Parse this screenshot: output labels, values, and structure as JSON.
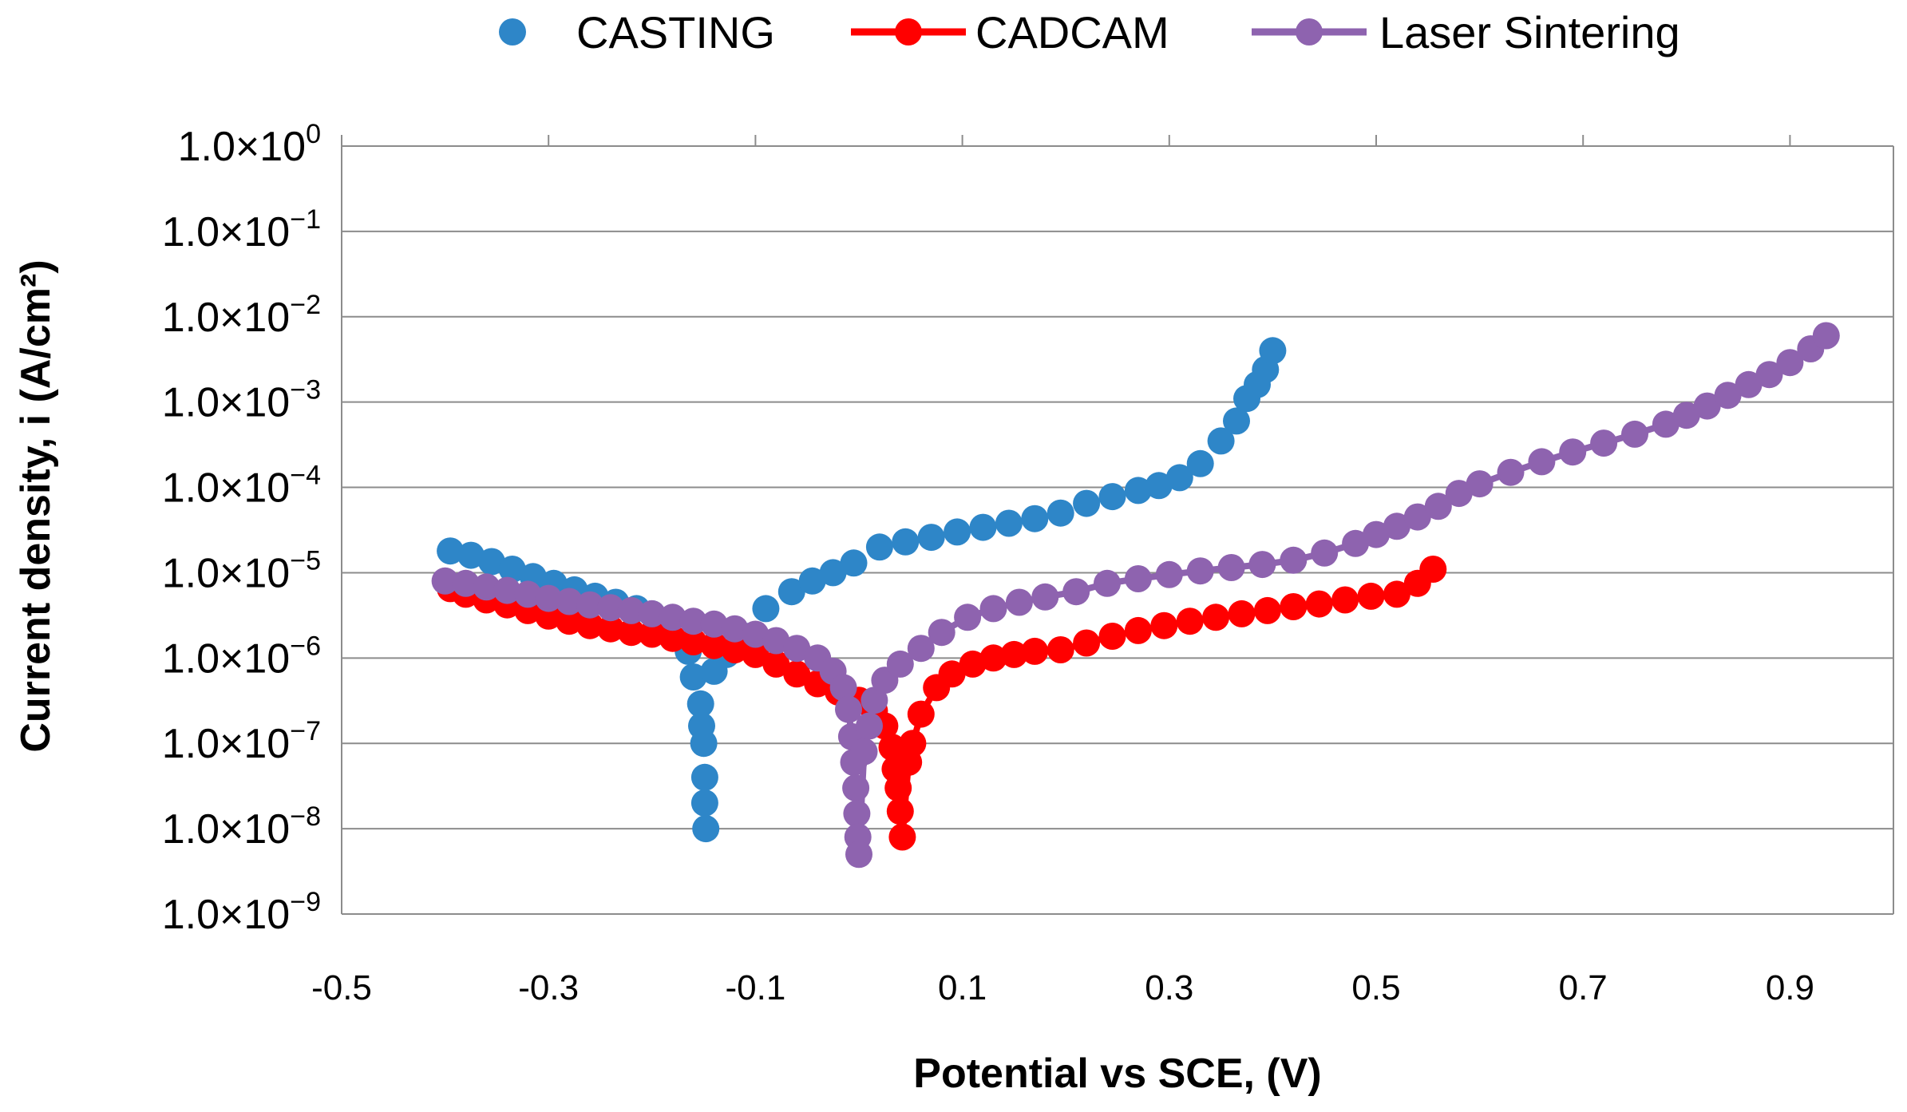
{
  "chart_data": {
    "type": "scatter",
    "xlabel": "Potential vs SCE, (V)",
    "ylabel": "Current density, i (A/cm²)",
    "xlim": [
      -0.5,
      1.0
    ],
    "ylim": [
      1e-09,
      1
    ],
    "yscale": "log",
    "grid": "horizontal",
    "legend_position": "top",
    "x_ticks": [
      "-0.5",
      "-0.3",
      "-0.1",
      "0.1",
      "0.3",
      "0.5",
      "0.7",
      "0.9"
    ],
    "x_tick_values": [
      -0.5,
      -0.3,
      -0.1,
      0.1,
      0.3,
      0.5,
      0.7,
      0.9
    ],
    "y_ticks": [
      {
        "mant": "1.0×10",
        "exp": "0",
        "value": 1
      },
      {
        "mant": "1.0×10",
        "exp": "−1",
        "value": 0.1
      },
      {
        "mant": "1.0×10",
        "exp": "−2",
        "value": 0.01
      },
      {
        "mant": "1.0×10",
        "exp": "−3",
        "value": 0.001
      },
      {
        "mant": "1.0×10",
        "exp": "−4",
        "value": 0.0001
      },
      {
        "mant": "1.0×10",
        "exp": "−5",
        "value": 1e-05
      },
      {
        "mant": "1.0×10",
        "exp": "−6",
        "value": 1e-06
      },
      {
        "mant": "1.0×10",
        "exp": "−7",
        "value": 1e-07
      },
      {
        "mant": "1.0×10",
        "exp": "−8",
        "value": 1e-08
      },
      {
        "mant": "1.0×10",
        "exp": "−9",
        "value": 1e-09
      }
    ],
    "series": [
      {
        "name": "CASTING",
        "color": "#2E86C8",
        "marker": "circle",
        "line": false,
        "points": [
          [
            -0.395,
            1.8e-05
          ],
          [
            -0.375,
            1.6e-05
          ],
          [
            -0.355,
            1.35e-05
          ],
          [
            -0.335,
            1.1e-05
          ],
          [
            -0.315,
            9e-06
          ],
          [
            -0.295,
            7.5e-06
          ],
          [
            -0.275,
            6.3e-06
          ],
          [
            -0.255,
            5.3e-06
          ],
          [
            -0.235,
            4.5e-06
          ],
          [
            -0.215,
            3.8e-06
          ],
          [
            -0.2,
            3.3e-06
          ],
          [
            -0.185,
            2.4e-06
          ],
          [
            -0.165,
            1.2e-06
          ],
          [
            -0.16,
            6e-07
          ],
          [
            -0.153,
            2.9e-07
          ],
          [
            -0.152,
            1.6e-07
          ],
          [
            -0.15,
            1e-07
          ],
          [
            -0.149,
            4e-08
          ],
          [
            -0.149,
            2e-08
          ],
          [
            -0.148,
            1e-08
          ],
          [
            -0.14,
            7e-07
          ],
          [
            -0.128,
            1.1e-06
          ],
          [
            -0.11,
            1.8e-06
          ],
          [
            -0.09,
            3.8e-06
          ],
          [
            -0.065,
            6e-06
          ],
          [
            -0.045,
            8e-06
          ],
          [
            -0.025,
            1e-05
          ],
          [
            -0.005,
            1.3e-05
          ],
          [
            0.02,
            2e-05
          ],
          [
            0.045,
            2.3e-05
          ],
          [
            0.07,
            2.6e-05
          ],
          [
            0.095,
            3e-05
          ],
          [
            0.12,
            3.4e-05
          ],
          [
            0.145,
            3.8e-05
          ],
          [
            0.17,
            4.3e-05
          ],
          [
            0.195,
            5e-05
          ],
          [
            0.22,
            6.5e-05
          ],
          [
            0.245,
            7.8e-05
          ],
          [
            0.27,
            9.2e-05
          ],
          [
            0.29,
            0.000105
          ],
          [
            0.31,
            0.00013
          ],
          [
            0.33,
            0.00019
          ],
          [
            0.35,
            0.00035
          ],
          [
            0.365,
            0.0006
          ],
          [
            0.375,
            0.0011
          ],
          [
            0.385,
            0.0016
          ],
          [
            0.393,
            0.0024
          ],
          [
            0.4,
            0.004
          ]
        ]
      },
      {
        "name": "CADCAM",
        "color": "#FF0000",
        "marker": "circle",
        "line": true,
        "points": [
          [
            -0.395,
            6.5e-06
          ],
          [
            -0.38,
            5.6e-06
          ],
          [
            -0.36,
            4.8e-06
          ],
          [
            -0.34,
            4.2e-06
          ],
          [
            -0.32,
            3.6e-06
          ],
          [
            -0.3,
            3.1e-06
          ],
          [
            -0.28,
            2.7e-06
          ],
          [
            -0.26,
            2.4e-06
          ],
          [
            -0.24,
            2.2e-06
          ],
          [
            -0.22,
            2e-06
          ],
          [
            -0.2,
            1.9e-06
          ],
          [
            -0.18,
            1.7e-06
          ],
          [
            -0.16,
            1.55e-06
          ],
          [
            -0.14,
            1.4e-06
          ],
          [
            -0.12,
            1.25e-06
          ],
          [
            -0.1,
            1.1e-06
          ],
          [
            -0.08,
            8.5e-07
          ],
          [
            -0.06,
            6.5e-07
          ],
          [
            -0.04,
            5e-07
          ],
          [
            -0.02,
            4e-07
          ],
          [
            0,
            3.2e-07
          ],
          [
            0.015,
            2.4e-07
          ],
          [
            0.025,
            1.6e-07
          ],
          [
            0.032,
            9e-08
          ],
          [
            0.035,
            5e-08
          ],
          [
            0.038,
            3e-08
          ],
          [
            0.04,
            1.6e-08
          ],
          [
            0.042,
            8e-09
          ],
          [
            0.048,
            6e-08
          ],
          [
            0.052,
            1e-07
          ],
          [
            0.06,
            2.2e-07
          ],
          [
            0.075,
            4.5e-07
          ],
          [
            0.09,
            6.5e-07
          ],
          [
            0.11,
            8.5e-07
          ],
          [
            0.13,
            1e-06
          ],
          [
            0.15,
            1.1e-06
          ],
          [
            0.17,
            1.2e-06
          ],
          [
            0.195,
            1.25e-06
          ],
          [
            0.22,
            1.5e-06
          ],
          [
            0.245,
            1.8e-06
          ],
          [
            0.27,
            2.1e-06
          ],
          [
            0.295,
            2.4e-06
          ],
          [
            0.32,
            2.7e-06
          ],
          [
            0.345,
            3e-06
          ],
          [
            0.37,
            3.3e-06
          ],
          [
            0.395,
            3.6e-06
          ],
          [
            0.42,
            4e-06
          ],
          [
            0.445,
            4.3e-06
          ],
          [
            0.47,
            4.8e-06
          ],
          [
            0.495,
            5.3e-06
          ],
          [
            0.52,
            5.6e-06
          ],
          [
            0.54,
            7.5e-06
          ],
          [
            0.555,
            1.1e-05
          ]
        ]
      },
      {
        "name": "Laser Sintering",
        "color": "#8E63AF",
        "marker": "circle",
        "line": true,
        "points": [
          [
            -0.4,
            8e-06
          ],
          [
            -0.38,
            7.5e-06
          ],
          [
            -0.36,
            6.8e-06
          ],
          [
            -0.34,
            6.2e-06
          ],
          [
            -0.32,
            5.6e-06
          ],
          [
            -0.3,
            5e-06
          ],
          [
            -0.28,
            4.6e-06
          ],
          [
            -0.26,
            4.2e-06
          ],
          [
            -0.24,
            3.9e-06
          ],
          [
            -0.22,
            3.6e-06
          ],
          [
            -0.2,
            3.3e-06
          ],
          [
            -0.18,
            3e-06
          ],
          [
            -0.16,
            2.7e-06
          ],
          [
            -0.14,
            2.5e-06
          ],
          [
            -0.12,
            2.2e-06
          ],
          [
            -0.1,
            1.9e-06
          ],
          [
            -0.08,
            1.6e-06
          ],
          [
            -0.06,
            1.3e-06
          ],
          [
            -0.04,
            1e-06
          ],
          [
            -0.025,
            7e-07
          ],
          [
            -0.015,
            4.5e-07
          ],
          [
            -0.01,
            2.5e-07
          ],
          [
            -0.007,
            1.2e-07
          ],
          [
            -0.005,
            6e-08
          ],
          [
            -0.003,
            3e-08
          ],
          [
            -0.002,
            1.5e-08
          ],
          [
            -0.001,
            8e-09
          ],
          [
            0,
            5e-09
          ],
          [
            0.005,
            8e-08
          ],
          [
            0.01,
            1.6e-07
          ],
          [
            0.015,
            3.2e-07
          ],
          [
            0.025,
            5.5e-07
          ],
          [
            0.04,
            8.5e-07
          ],
          [
            0.06,
            1.3e-06
          ],
          [
            0.08,
            2e-06
          ],
          [
            0.105,
            3e-06
          ],
          [
            0.13,
            3.8e-06
          ],
          [
            0.155,
            4.5e-06
          ],
          [
            0.18,
            5.2e-06
          ],
          [
            0.21,
            6e-06
          ],
          [
            0.24,
            7.5e-06
          ],
          [
            0.27,
            8.5e-06
          ],
          [
            0.3,
            9.5e-06
          ],
          [
            0.33,
            1.05e-05
          ],
          [
            0.36,
            1.15e-05
          ],
          [
            0.39,
            1.25e-05
          ],
          [
            0.42,
            1.4e-05
          ],
          [
            0.45,
            1.7e-05
          ],
          [
            0.48,
            2.2e-05
          ],
          [
            0.5,
            2.8e-05
          ],
          [
            0.52,
            3.5e-05
          ],
          [
            0.54,
            4.5e-05
          ],
          [
            0.56,
            6e-05
          ],
          [
            0.58,
            8.5e-05
          ],
          [
            0.6,
            0.00011
          ],
          [
            0.63,
            0.00015
          ],
          [
            0.66,
            0.0002
          ],
          [
            0.69,
            0.00026
          ],
          [
            0.72,
            0.00033
          ],
          [
            0.75,
            0.00042
          ],
          [
            0.78,
            0.00055
          ],
          [
            0.8,
            0.0007
          ],
          [
            0.82,
            0.0009
          ],
          [
            0.84,
            0.0012
          ],
          [
            0.86,
            0.0016
          ],
          [
            0.88,
            0.0021
          ],
          [
            0.9,
            0.0029
          ],
          [
            0.92,
            0.0042
          ],
          [
            0.935,
            0.006
          ]
        ]
      }
    ]
  }
}
